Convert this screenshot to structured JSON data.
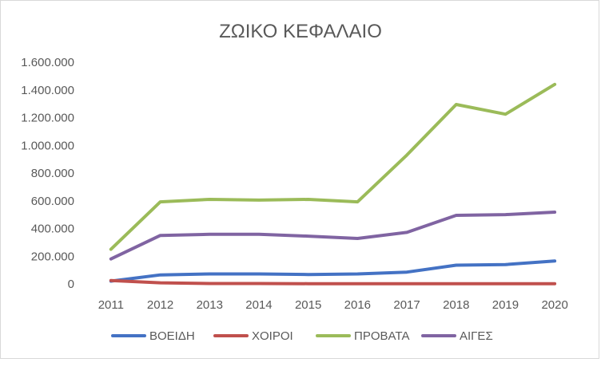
{
  "chart_data": {
    "type": "line",
    "title": "ΖΩΙΚΟ ΚΕΦΑΛΑΙΟ",
    "xlabel": "",
    "ylabel": "",
    "categories": [
      "2011",
      "2012",
      "2013",
      "2014",
      "2015",
      "2016",
      "2017",
      "2018",
      "2019",
      "2020"
    ],
    "ylim": [
      0,
      1600000
    ],
    "yticks": [
      0,
      200000,
      400000,
      600000,
      800000,
      1000000,
      1200000,
      1400000,
      1600000
    ],
    "ytick_labels": [
      "0",
      "200.000",
      "400.000",
      "600.000",
      "800.000",
      "1.000.000",
      "1.200.000",
      "1.400.000",
      "1.600.000"
    ],
    "grid": false,
    "legend_position": "bottom",
    "series": [
      {
        "name": "ΒΟΕΙΔΗ",
        "color": "#4472c4",
        "values": [
          20000,
          65000,
          72000,
          72000,
          68000,
          72000,
          85000,
          135000,
          140000,
          165000
        ]
      },
      {
        "name": "ΧΟΙΡΟΙ",
        "color": "#c0504d",
        "values": [
          25000,
          8000,
          3000,
          3000,
          2000,
          2000,
          2000,
          2000,
          2000,
          2000
        ]
      },
      {
        "name": "ΠΡΟΒΑΤΑ",
        "color": "#9bbb59",
        "values": [
          250000,
          592000,
          610000,
          605000,
          610000,
          592000,
          930000,
          1295000,
          1225000,
          1440000
        ]
      },
      {
        "name": "ΑΙΓΕΣ",
        "color": "#8064a2",
        "values": [
          180000,
          350000,
          358000,
          358000,
          345000,
          328000,
          372000,
          495000,
          500000,
          518000
        ]
      }
    ]
  }
}
